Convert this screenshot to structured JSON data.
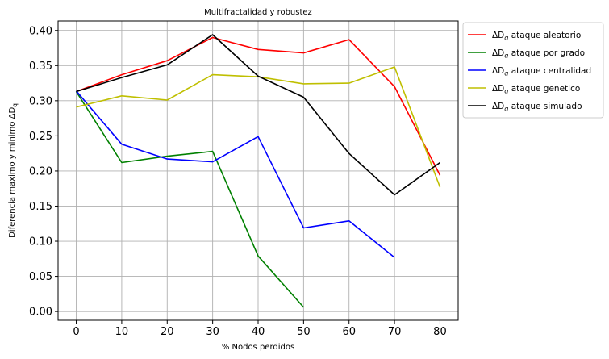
{
  "chart_data": {
    "type": "line",
    "title": "Multifractalidad y robustez",
    "xlabel": "% Nodos perdidos",
    "ylabel": "Diferencia maximo y minimo ΔD_q",
    "xlim": [
      -4,
      84
    ],
    "ylim": [
      -0.0125,
      0.4135
    ],
    "xticks": [
      0,
      10,
      20,
      30,
      40,
      50,
      60,
      70,
      80
    ],
    "xtick_labels": [
      "0",
      "10",
      "20",
      "30",
      "40",
      "50",
      "60",
      "70",
      "80"
    ],
    "yticks": [
      0.0,
      0.05,
      0.1,
      0.15,
      0.2,
      0.25,
      0.3,
      0.35,
      0.4
    ],
    "ytick_labels": [
      "0.00",
      "0.05",
      "0.10",
      "0.15",
      "0.20",
      "0.25",
      "0.30",
      "0.35",
      "0.40"
    ],
    "grid": true,
    "legend_position": "outside-top-right",
    "series": [
      {
        "name": "ΔD_q ataque aleatorio",
        "legend_prefix": "ΔD",
        "legend_sub": "q",
        "legend_suffix": " ataque aleatorio",
        "color": "#ff0000",
        "x": [
          0,
          10,
          20,
          30,
          40,
          50,
          60,
          70,
          80
        ],
        "y": [
          0.313,
          0.337,
          0.357,
          0.39,
          0.373,
          0.368,
          0.387,
          0.32,
          0.194
        ]
      },
      {
        "name": "ΔD_q ataque por grado",
        "legend_prefix": "ΔD",
        "legend_sub": "q",
        "legend_suffix": " ataque por grado",
        "color": "#008000",
        "x": [
          0,
          10,
          20,
          30,
          40,
          50
        ],
        "y": [
          0.313,
          0.212,
          0.221,
          0.228,
          0.079,
          0.006
        ]
      },
      {
        "name": "ΔD_q ataque centralidad",
        "legend_prefix": "ΔD",
        "legend_sub": "q",
        "legend_suffix": " ataque centralidad",
        "color": "#0000ff",
        "x": [
          0,
          10,
          20,
          30,
          40,
          50,
          60,
          70
        ],
        "y": [
          0.314,
          0.238,
          0.217,
          0.213,
          0.249,
          0.119,
          0.129,
          0.077
        ]
      },
      {
        "name": "ΔD_q ataque genetico",
        "legend_prefix": "ΔD",
        "legend_sub": "q",
        "legend_suffix": " ataque genetico",
        "color": "#bfbf00",
        "x": [
          0,
          10,
          20,
          30,
          40,
          50,
          60,
          70,
          80
        ],
        "y": [
          0.291,
          0.307,
          0.301,
          0.337,
          0.334,
          0.324,
          0.325,
          0.348,
          0.177
        ]
      },
      {
        "name": "ΔD_q ataque simulado",
        "legend_prefix": "ΔD",
        "legend_sub": "q",
        "legend_suffix": " ataque simulado",
        "color": "#000000",
        "x": [
          0,
          10,
          20,
          30,
          40,
          50,
          60,
          70,
          80
        ],
        "y": [
          0.313,
          0.333,
          0.351,
          0.394,
          0.335,
          0.305,
          0.225,
          0.166,
          0.212
        ]
      }
    ]
  }
}
